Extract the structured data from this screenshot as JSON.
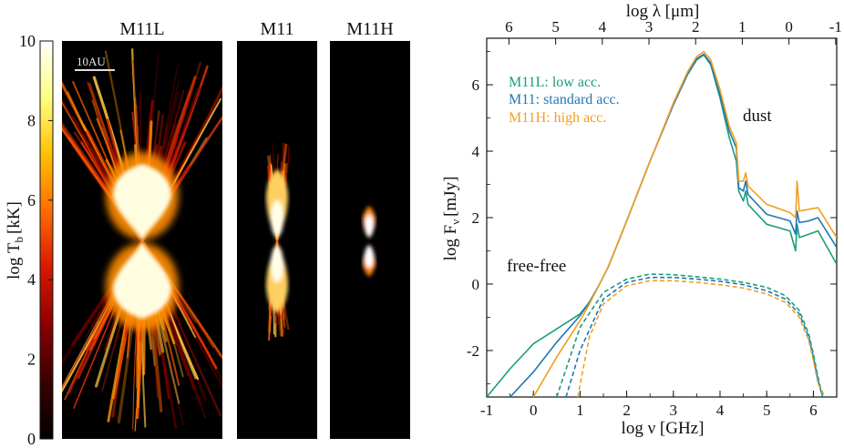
{
  "chart_data": [
    {
      "type": "heatmap",
      "colorbar": {
        "label": "log T",
        "label_sub": "b",
        "label_unit": "[kK]",
        "range": [
          0,
          10
        ],
        "ticks": [
          0,
          2,
          4,
          6,
          8,
          10
        ],
        "colormap": [
          "#000000",
          "#3a0000",
          "#8b0000",
          "#d81800",
          "#ff6a00",
          "#ffc000",
          "#ffff80",
          "#ffffff"
        ]
      },
      "scale_bar": "10AU",
      "panels": [
        {
          "name": "M11L",
          "vertical_extent_rel": 0.98,
          "width_rel": 1.0
        },
        {
          "name": "M11",
          "vertical_extent_rel": 0.55,
          "width_rel": 0.45
        },
        {
          "name": "M11H",
          "vertical_extent_rel": 0.22,
          "width_rel": 0.25
        }
      ]
    },
    {
      "type": "line",
      "xlabel": "log ν [GHz]",
      "ylabel_main": "log F",
      "ylabel_sub": "ν",
      "ylabel_unit": "[mJy]",
      "top_xlabel": "log λ [μm]",
      "xlim": [
        -1,
        6.5
      ],
      "ylim": [
        -3.4,
        7.4
      ],
      "xticks": [
        -1,
        0,
        1,
        2,
        3,
        4,
        5,
        6
      ],
      "yticks": [
        -2,
        0,
        2,
        4,
        6
      ],
      "top_ticks": [
        "6",
        "5",
        "4",
        "3",
        "2",
        "1",
        "0",
        "-1"
      ],
      "annotations": {
        "dust": "dust",
        "free_free": "free-free"
      },
      "legend": [
        {
          "label": "M11L: low acc.",
          "color": "#1a9e7a"
        },
        {
          "label": "M11: standard acc.",
          "color": "#1f77b4"
        },
        {
          "label": "M11H: high acc.",
          "color": "#f0a020"
        }
      ],
      "series": [
        {
          "name": "M11L total",
          "color": "#1a9e7a",
          "style": "solid",
          "x": [
            -1,
            -0.5,
            0,
            0.5,
            1,
            1.2,
            1.4,
            1.6,
            1.8,
            2.0,
            2.5,
            3.0,
            3.3,
            3.5,
            3.65,
            3.8,
            4.0,
            4.2,
            4.35,
            4.4,
            4.5,
            4.55,
            4.6,
            5.0,
            5.5,
            5.62,
            5.65,
            5.7,
            5.9,
            6.1,
            6.5
          ],
          "y": [
            -3.4,
            -2.55,
            -1.8,
            -1.35,
            -0.9,
            -0.55,
            -0.05,
            0.5,
            1.2,
            1.9,
            3.7,
            5.4,
            6.3,
            6.75,
            6.9,
            6.6,
            5.6,
            4.4,
            3.7,
            2.8,
            2.5,
            2.8,
            2.4,
            1.8,
            1.6,
            1.0,
            1.8,
            1.4,
            1.5,
            1.6,
            0.6
          ]
        },
        {
          "name": "M11 total",
          "color": "#1f77b4",
          "style": "solid",
          "x": [
            -0.5,
            0,
            0.5,
            1,
            1.2,
            1.4,
            1.6,
            1.8,
            2.0,
            2.5,
            3.0,
            3.3,
            3.5,
            3.65,
            3.8,
            4.0,
            4.2,
            4.35,
            4.4,
            4.5,
            4.55,
            4.6,
            5.0,
            5.5,
            5.62,
            5.65,
            5.7,
            5.9,
            6.1,
            6.5
          ],
          "y": [
            -3.4,
            -2.65,
            -1.75,
            -0.95,
            -0.55,
            -0.05,
            0.5,
            1.2,
            1.9,
            3.7,
            5.4,
            6.32,
            6.78,
            6.92,
            6.65,
            5.7,
            4.6,
            4.1,
            2.9,
            2.8,
            3.1,
            2.7,
            2.1,
            1.9,
            1.5,
            2.2,
            1.85,
            1.9,
            2.0,
            1.1
          ]
        },
        {
          "name": "M11H total",
          "color": "#f0a020",
          "style": "solid",
          "x": [
            0,
            0.5,
            1,
            1.2,
            1.4,
            1.6,
            1.8,
            2.0,
            2.5,
            3.0,
            3.3,
            3.5,
            3.65,
            3.8,
            4.0,
            4.2,
            4.35,
            4.4,
            4.5,
            4.55,
            4.6,
            5.0,
            5.5,
            5.62,
            5.65,
            5.7,
            5.9,
            6.1,
            6.5
          ],
          "y": [
            -3.4,
            -2.2,
            -1.1,
            -0.6,
            -0.05,
            0.5,
            1.2,
            1.9,
            3.7,
            5.45,
            6.38,
            6.85,
            7.0,
            6.75,
            5.85,
            4.75,
            4.25,
            3.1,
            3.1,
            3.35,
            2.95,
            2.4,
            2.15,
            2.0,
            3.1,
            2.2,
            2.25,
            2.3,
            1.4
          ]
        },
        {
          "name": "M11L free-free",
          "color": "#1a9e7a",
          "style": "dashed",
          "x": [
            0.5,
            1,
            1.5,
            2,
            2.5,
            3,
            3.5,
            4,
            4.5,
            5,
            5.4,
            5.7,
            5.9,
            6.0,
            6.1,
            6.2
          ],
          "y": [
            -3.4,
            -1.3,
            -0.25,
            0.15,
            0.3,
            0.28,
            0.22,
            0.15,
            0.05,
            -0.1,
            -0.35,
            -0.8,
            -1.5,
            -2.1,
            -2.8,
            -3.4
          ]
        },
        {
          "name": "M11 free-free",
          "color": "#1f77b4",
          "style": "dashed",
          "x": [
            0.7,
            1,
            1.5,
            2,
            2.5,
            3,
            3.5,
            4,
            4.5,
            5,
            5.4,
            5.7,
            5.9,
            6.0,
            6.1,
            6.2
          ],
          "y": [
            -3.4,
            -2.0,
            -0.45,
            0.05,
            0.2,
            0.2,
            0.15,
            0.08,
            -0.02,
            -0.2,
            -0.45,
            -0.9,
            -1.6,
            -2.2,
            -2.9,
            -3.4
          ]
        },
        {
          "name": "M11H free-free",
          "color": "#f0a020",
          "style": "dashed",
          "x": [
            0.95,
            1.2,
            1.5,
            2,
            2.5,
            3,
            3.5,
            4,
            4.5,
            5,
            5.4,
            5.7,
            5.9,
            6.0,
            6.1,
            6.25
          ],
          "y": [
            -3.4,
            -1.6,
            -0.6,
            -0.05,
            0.1,
            0.1,
            0.05,
            -0.02,
            -0.12,
            -0.3,
            -0.55,
            -1.0,
            -1.7,
            -2.3,
            -3.0,
            -3.4
          ]
        }
      ]
    }
  ]
}
